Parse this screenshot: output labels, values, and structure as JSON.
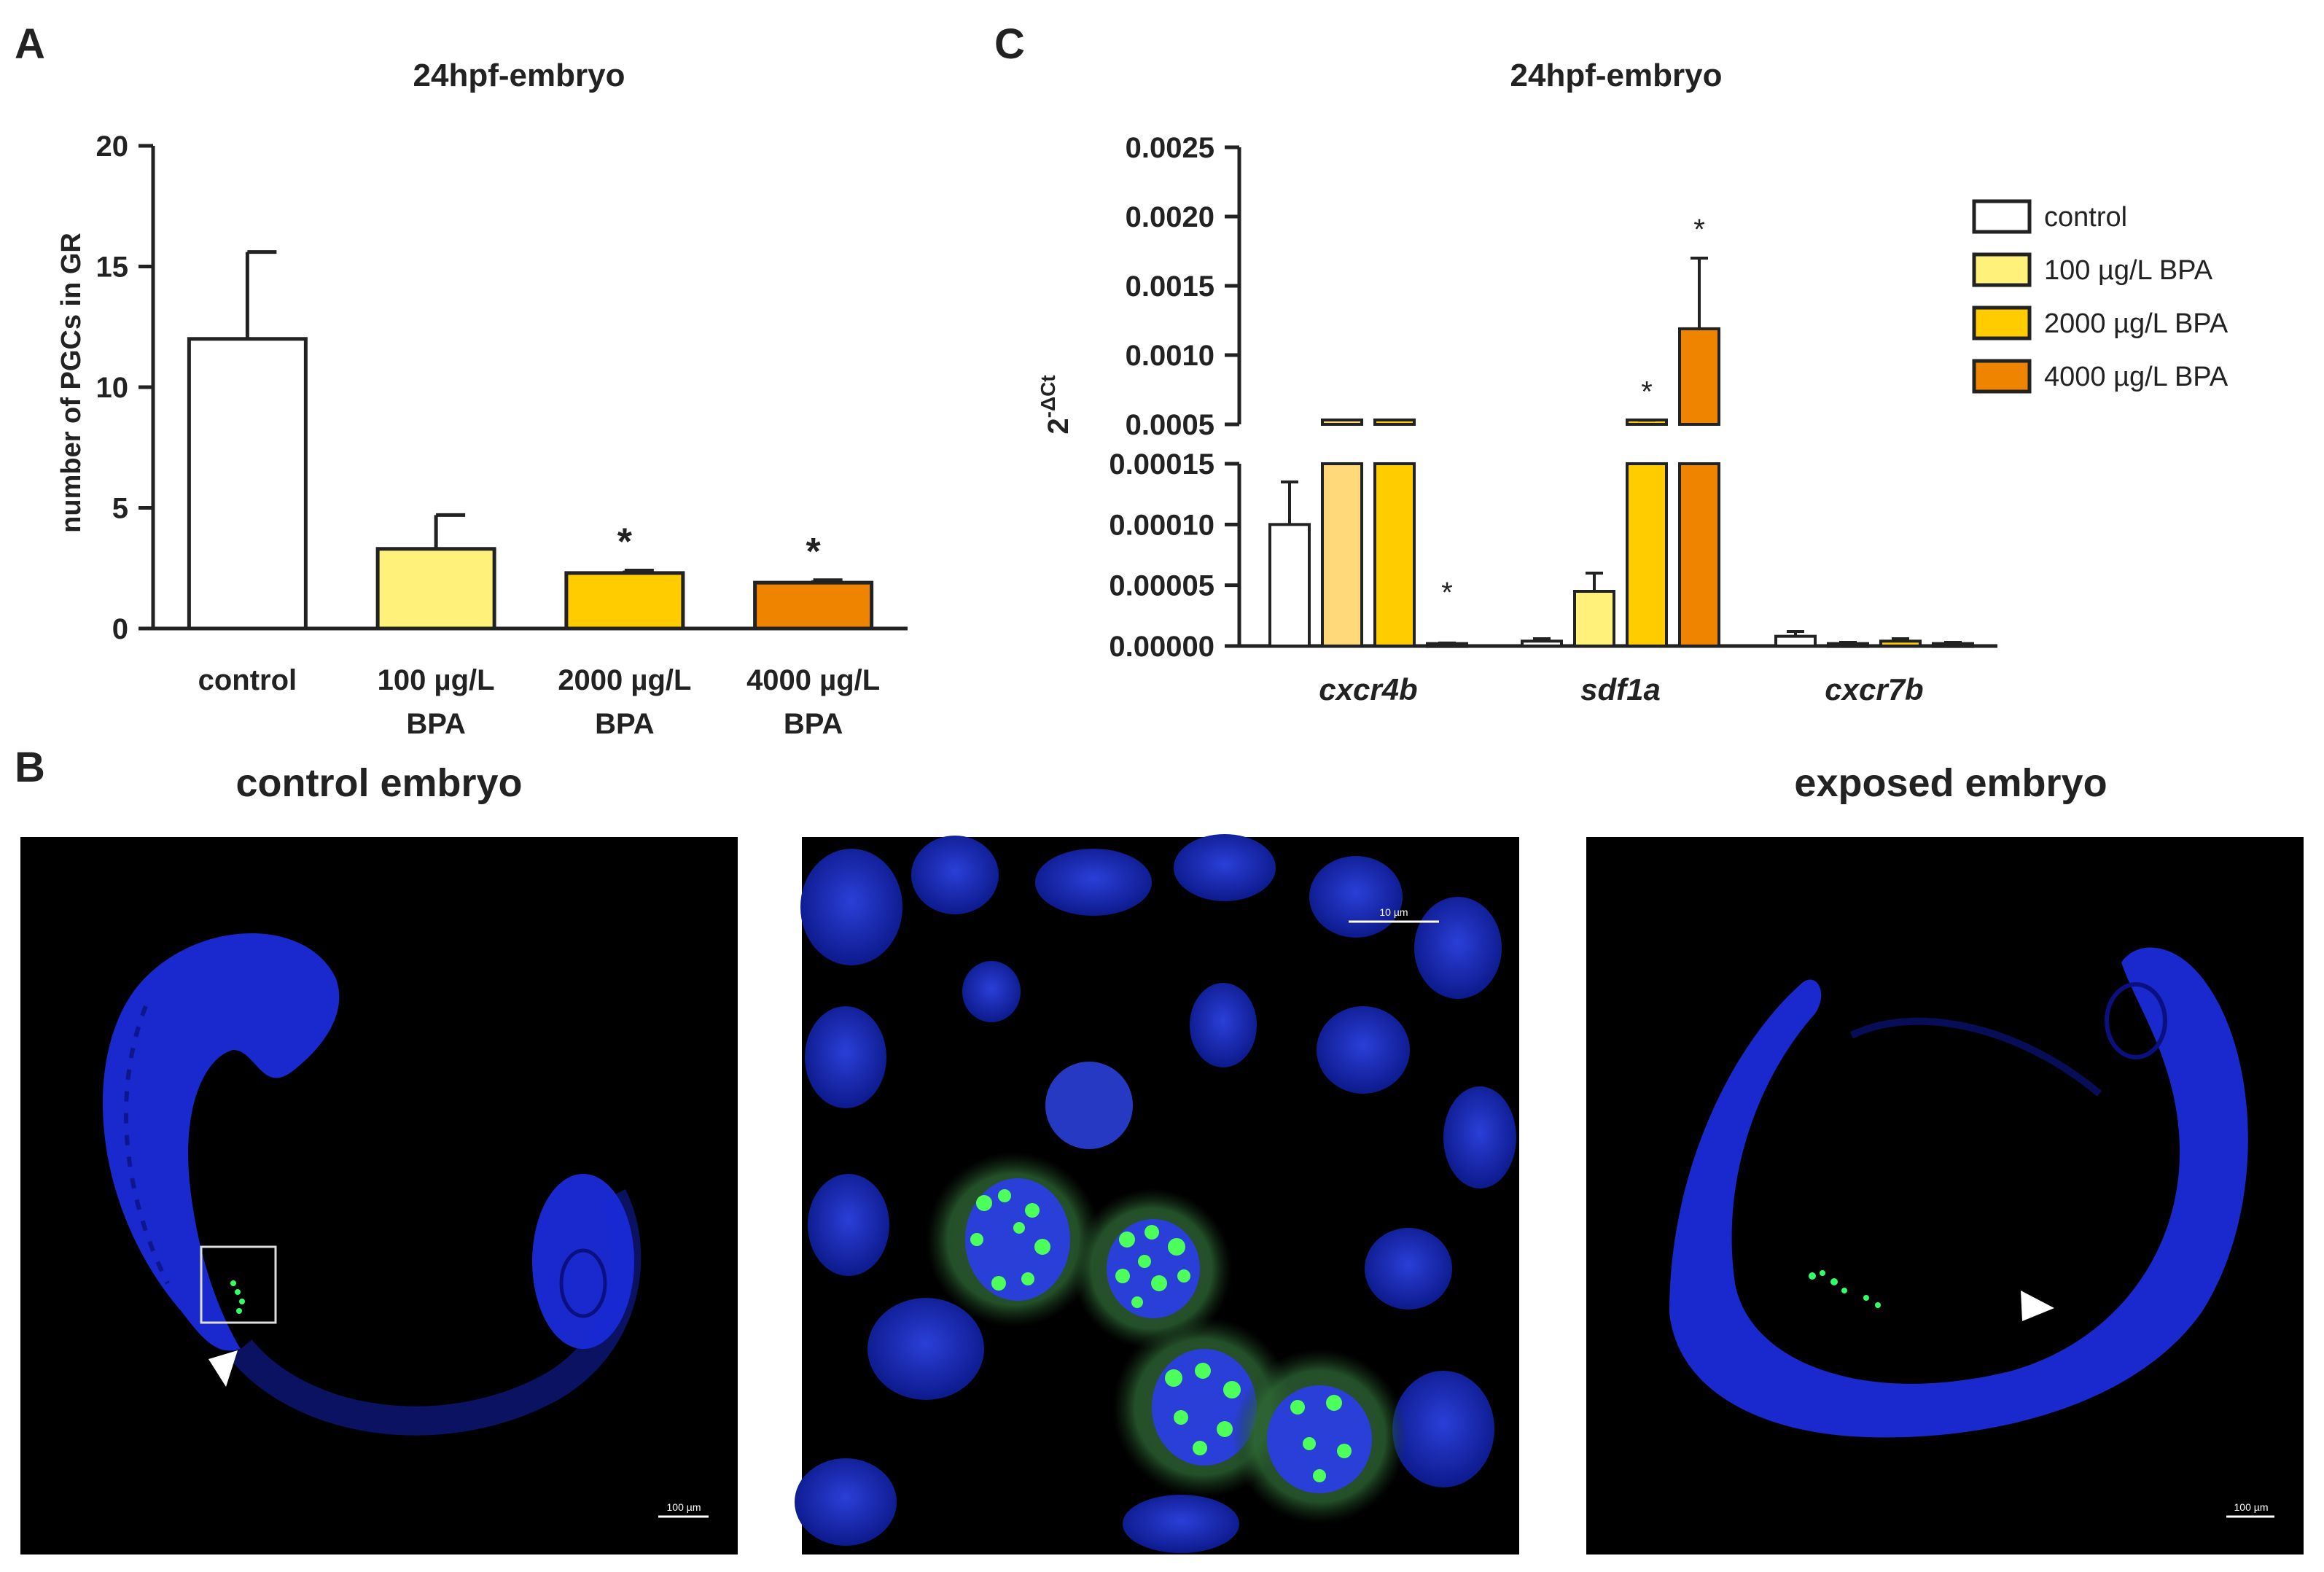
{
  "panel_labels": {
    "a": "A",
    "b": "B",
    "c": "C"
  },
  "colors": {
    "control": "#ffffff",
    "bpa100": "#fff17a",
    "bpa2000": "#ffcc00",
    "bpa4000": "#ee8400",
    "bpa100_light": "#ffd97a"
  },
  "chart_data": [
    {
      "panel": "A",
      "type": "bar",
      "title": "24hpf-embryo",
      "ylabel": "number of PGCs in GR",
      "xlabel": "",
      "ylim": [
        0,
        20
      ],
      "yticks": [
        "0",
        "5",
        "10",
        "15",
        "20"
      ],
      "categories": [
        {
          "line1": "control",
          "line2": ""
        },
        {
          "line1": "100 µg/L",
          "line2": "BPA"
        },
        {
          "line1": "2000 µg/L",
          "line2": "BPA"
        },
        {
          "line1": "4000 µg/L",
          "line2": "BPA"
        }
      ],
      "values": [
        12.0,
        3.3,
        2.3,
        1.9
      ],
      "errors": [
        3.6,
        1.4,
        0.1,
        0.1
      ],
      "significance": [
        "",
        "",
        "*",
        "*"
      ],
      "bar_colors": [
        "#ffffff",
        "#fff17a",
        "#ffcc00",
        "#ee8400"
      ]
    },
    {
      "panel": "C",
      "type": "bar",
      "title": "24hpf-embryo",
      "ylabel": "2",
      "ylabel_superscript": "-ΔCt",
      "xlabel": "",
      "broken_axis": true,
      "ylim_lower": [
        0,
        0.00015
      ],
      "ylim_upper": [
        0.0005,
        0.0025
      ],
      "yticks_lower": [
        "0.00000",
        "0.00005",
        "0.00010",
        "0.00015"
      ],
      "yticks_upper": [
        "0.0005",
        "0.0010",
        "0.0015",
        "0.0020",
        "0.0025"
      ],
      "legend_position": "top-right",
      "categories": [
        "cxcr4b",
        "sdf1a",
        "cxcr7b"
      ],
      "series": [
        {
          "name": "control",
          "color": "#ffffff",
          "values": [
            0.0001,
            4e-06,
            8e-06
          ],
          "errors": [
            3.5e-05,
            2e-06,
            4e-06
          ],
          "significance": [
            "",
            "",
            ""
          ]
        },
        {
          "name": "100 µg/L BPA",
          "color": "#fff17a",
          "values": [
            0.00016,
            4.5e-05,
            2e-06
          ],
          "errors": [
            5e-07,
            1.5e-05,
            1e-06
          ],
          "significance": [
            "",
            "",
            ""
          ]
        },
        {
          "name": "2000 µg/L BPA",
          "color": "#ffcc00",
          "values": [
            0.00019,
            0.00042,
            4e-06
          ],
          "errors": [
            5e-07,
            0.00011,
            2e-06
          ],
          "significance": [
            "",
            "*",
            ""
          ]
        },
        {
          "name": "4000 µg/L BPA",
          "color": "#ee8400",
          "values": [
            2e-06,
            0.00119,
            2e-06
          ],
          "errors": [
            5e-07,
            0.00051,
            1e-06
          ],
          "significance": [
            "*",
            "*",
            ""
          ]
        }
      ],
      "cxcr4b_100_color": "#ffd97a"
    }
  ],
  "micrographs": {
    "control_title": "control embryo",
    "exposed_title": "exposed embryo",
    "scale_left": "100 µm",
    "scale_mid": "10 µm",
    "scale_right": "100 µm"
  }
}
